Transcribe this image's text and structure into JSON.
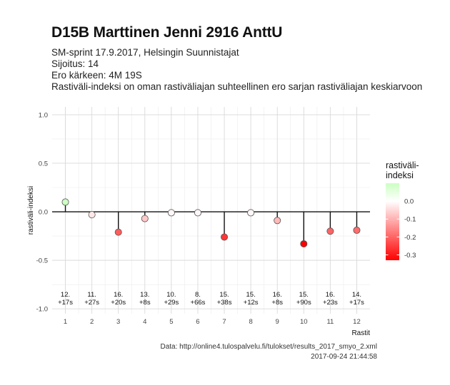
{
  "header": {
    "title": "D15B Marttinen Jenni 2916 AnttU",
    "subtitle_lines": [
      "SM-sprint 17.9.2017, Helsingin Suunnistajat",
      "Sijoitus: 14",
      "Ero kärkeen: 4M 19S",
      "Rastiväli-indeksi on oman rastiväliajan suhteellinen ero sarjan rastiväliajan keskiarvoon"
    ]
  },
  "footer": {
    "source": "Data: http://online4.tulospalvelu.fi/tulokset/results_2017_smyo_2.xml",
    "timestamp": "2017-09-24 21:44:58"
  },
  "chart_data": {
    "type": "lollipop",
    "xlabel": "Rastit",
    "ylabel": "rastiväli-indeksi",
    "x": [
      1,
      2,
      3,
      4,
      5,
      6,
      7,
      8,
      9,
      10,
      11,
      12
    ],
    "values": [
      0.1,
      -0.03,
      -0.21,
      -0.07,
      -0.01,
      -0.01,
      -0.26,
      -0.01,
      -0.09,
      -0.33,
      -0.2,
      -0.19
    ],
    "point_labels": [
      [
        "12.",
        "+17s"
      ],
      [
        "11.",
        "+27s"
      ],
      [
        "16.",
        "+20s"
      ],
      [
        "13.",
        "+8s"
      ],
      [
        "10.",
        "+29s"
      ],
      [
        "8.",
        "+66s"
      ],
      [
        "15.",
        "+38s"
      ],
      [
        "15.",
        "+12s"
      ],
      [
        "16.",
        "+8s"
      ],
      [
        "15.",
        "+90s"
      ],
      [
        "16.",
        "+23s"
      ],
      [
        "14.",
        "+17s"
      ]
    ],
    "xlim": [
      0.5,
      12.5
    ],
    "ylim": [
      -1.05,
      1.08
    ],
    "y_ticks": [
      1.0,
      0.5,
      0.0,
      -0.5,
      -1.0
    ],
    "y_tick_labels": [
      "1.0",
      "0.5",
      "0.0",
      "-0.5",
      "-1.0"
    ],
    "grid": true,
    "legend": {
      "title_lines": [
        "rastiväli-",
        "indeksi"
      ],
      "position": "right",
      "ticks": [
        0.0,
        -0.1,
        -0.2,
        -0.3
      ],
      "tick_labels": [
        "0.0",
        "-0.1",
        "-0.2",
        "-0.3"
      ],
      "range": [
        -0.33,
        0.1
      ],
      "colors": {
        "low": "#ff0000",
        "mid": "#ffffff",
        "high": "#ccffc2"
      }
    }
  }
}
